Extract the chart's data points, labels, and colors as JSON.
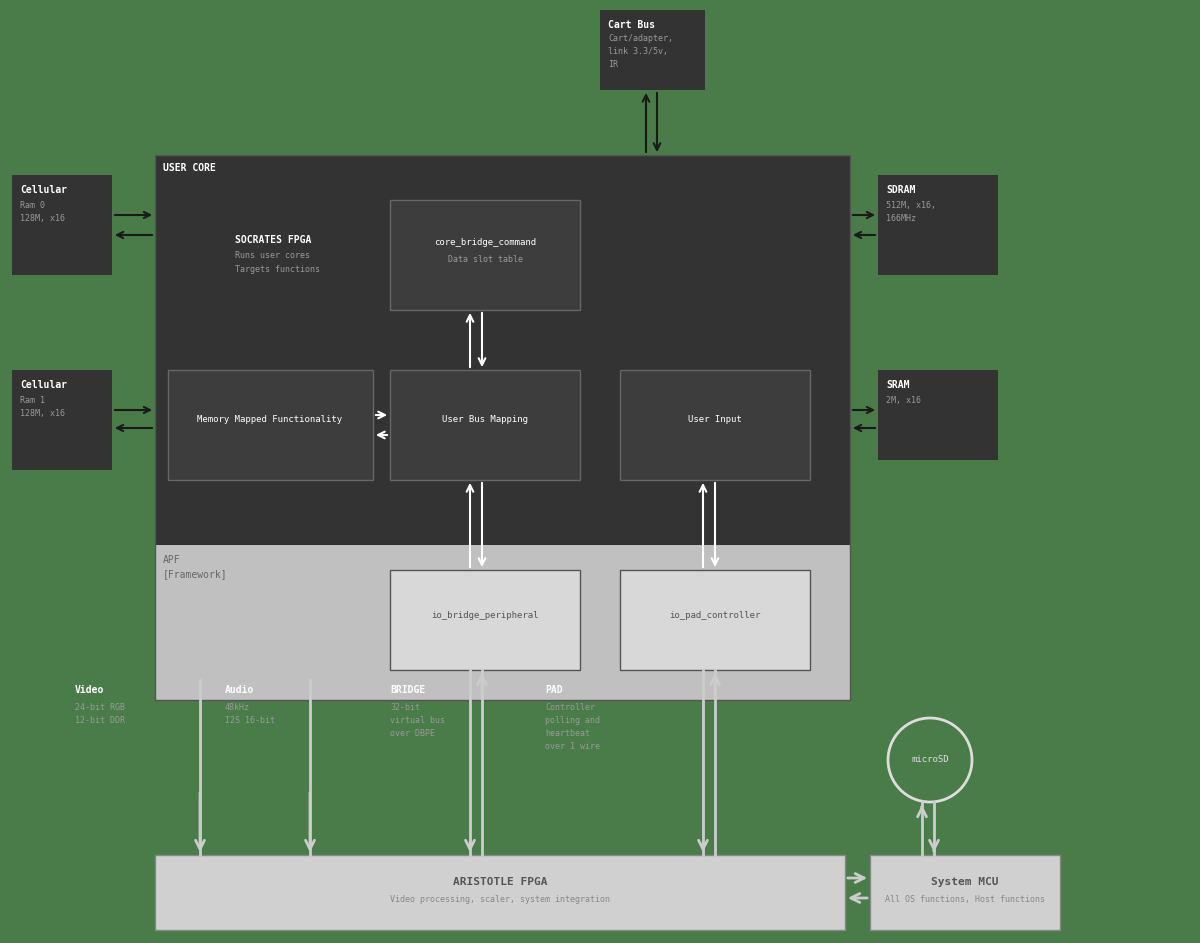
{
  "bg_color": "#4a7c4a",
  "dark_box_color": "#333333",
  "apf_box_color": "#c0c0c0",
  "inner_dark_color": "#3d3d3d",
  "inner_box_stroke": "#666666",
  "apf_inner_color": "#d8d8d8",
  "apf_inner_stroke": "#555555",
  "bottom_box_color": "#d0d0d0",
  "bottom_box_stroke": "#888888",
  "arrow_dark": "#1a1a1a",
  "arrow_light": "#cccccc",
  "text_white": "#ffffff",
  "text_light_gray": "#999999",
  "text_dark_gray": "#555555",
  "text_apf": "#666666",
  "cart_bus_title": "Cart Bus",
  "cart_bus_lines": [
    "Cart/adapter,",
    "link 3.3/5v,",
    "IR"
  ],
  "sdram_title": "SDRAM",
  "sdram_lines": [
    "512M, x16,",
    "166MHz"
  ],
  "sram_title": "SRAM",
  "sram_lines": [
    "2M, x16"
  ],
  "cellular0_title": "Cellular",
  "cellular0_lines": [
    "Ram 0",
    "128M, x16"
  ],
  "cellular1_title": "Cellular",
  "cellular1_lines": [
    "Ram 1",
    "128M, x16"
  ],
  "user_core_label": "USER CORE",
  "socrates_label": "SOCRATES FPGA",
  "socrates_sub1": "Runs user cores",
  "socrates_sub2": "Targets functions",
  "apf_label": "APF",
  "apf_sub": "[Framework]",
  "core_bridge_label": "core_bridge_command",
  "core_bridge_sub": "Data slot table",
  "mem_map_label": "Memory Mapped Functionality",
  "user_bus_label": "User Bus Mapping",
  "user_input_label": "User Input",
  "io_bridge_label": "io_bridge_peripheral",
  "io_pad_label": "io_pad_controller",
  "aristotle_label": "ARISTOTLE FPGA",
  "aristotle_sub": "Video processing, scaler, system integration",
  "system_mcu_label": "System MCU",
  "system_mcu_sub": "All OS functions, Host functions",
  "microsd_label": "microSD",
  "video_title": "Video",
  "video_lines": [
    "24-bit RGB",
    "12-bit DDR"
  ],
  "audio_title": "Audio",
  "audio_lines": [
    "48kHz",
    "I2S 16-bit"
  ],
  "bridge_title": "BRIDGE",
  "bridge_lines": [
    "32-bit",
    "virtual bus",
    "over DBPE"
  ],
  "pad_title": "PAD",
  "pad_lines": [
    "Controller",
    "polling and",
    "heartbeat",
    "over 1 wire"
  ]
}
